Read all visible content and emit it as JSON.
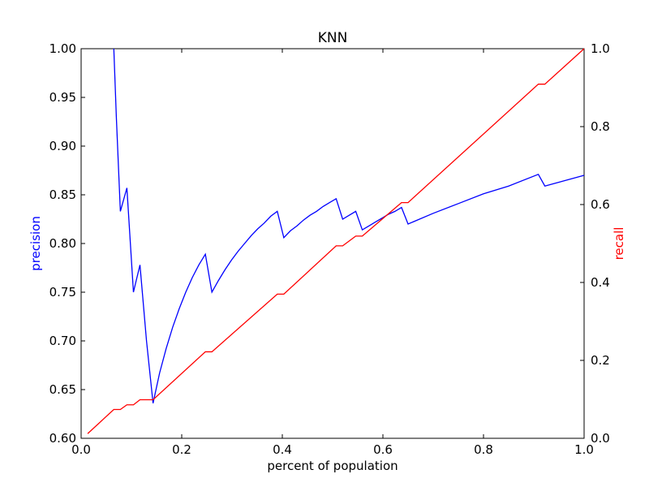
{
  "chart_data": {
    "type": "line",
    "title": "KNN",
    "xlabel": "percent of population",
    "ylabel_left": "precision",
    "ylabel_right": "recall",
    "xlim": [
      0.0,
      1.0
    ],
    "ylim_left": [
      0.6,
      1.0
    ],
    "ylim_right": [
      0.0,
      1.0
    ],
    "x_ticks": [
      "0.0",
      "0.2",
      "0.4",
      "0.6",
      "0.8",
      "1.0"
    ],
    "y_left_ticks": [
      "0.60",
      "0.65",
      "0.70",
      "0.75",
      "0.80",
      "0.85",
      "0.90",
      "0.95",
      "1.00"
    ],
    "y_right_ticks": [
      "0.0",
      "0.2",
      "0.4",
      "0.6",
      "0.8",
      "1.0"
    ],
    "grid": false,
    "colors": {
      "precision": "#0000ff",
      "recall": "#ff0000",
      "axes": "#000000"
    },
    "series": [
      {
        "axis": "left",
        "color": "#0000ff",
        "points": [
          [
            0.065,
            1.0
          ],
          [
            0.07,
            0.93
          ],
          [
            0.078,
            0.833
          ],
          [
            0.091,
            0.857
          ],
          [
            0.104,
            0.75
          ],
          [
            0.117,
            0.778
          ],
          [
            0.13,
            0.7
          ],
          [
            0.143,
            0.636
          ],
          [
            0.156,
            0.667
          ],
          [
            0.169,
            0.692
          ],
          [
            0.182,
            0.714
          ],
          [
            0.195,
            0.733
          ],
          [
            0.208,
            0.75
          ],
          [
            0.221,
            0.765
          ],
          [
            0.234,
            0.778
          ],
          [
            0.247,
            0.789
          ],
          [
            0.26,
            0.75
          ],
          [
            0.273,
            0.762
          ],
          [
            0.286,
            0.773
          ],
          [
            0.299,
            0.783
          ],
          [
            0.312,
            0.792
          ],
          [
            0.325,
            0.8
          ],
          [
            0.338,
            0.808
          ],
          [
            0.351,
            0.815
          ],
          [
            0.364,
            0.821
          ],
          [
            0.377,
            0.828
          ],
          [
            0.39,
            0.833
          ],
          [
            0.403,
            0.806
          ],
          [
            0.416,
            0.813
          ],
          [
            0.429,
            0.818
          ],
          [
            0.442,
            0.824
          ],
          [
            0.455,
            0.829
          ],
          [
            0.468,
            0.833
          ],
          [
            0.481,
            0.838
          ],
          [
            0.494,
            0.842
          ],
          [
            0.507,
            0.846
          ],
          [
            0.52,
            0.825
          ],
          [
            0.533,
            0.829
          ],
          [
            0.546,
            0.833
          ],
          [
            0.559,
            0.814
          ],
          [
            0.572,
            0.818
          ],
          [
            0.585,
            0.822
          ],
          [
            0.598,
            0.826
          ],
          [
            0.611,
            0.83
          ],
          [
            0.624,
            0.833
          ],
          [
            0.637,
            0.837
          ],
          [
            0.65,
            0.82
          ],
          [
            0.7,
            0.831
          ],
          [
            0.75,
            0.841
          ],
          [
            0.8,
            0.851
          ],
          [
            0.85,
            0.859
          ],
          [
            0.909,
            0.871
          ],
          [
            0.922,
            0.859
          ],
          [
            1.0,
            0.87
          ]
        ]
      },
      {
        "axis": "right",
        "color": "#ff0000",
        "points": [
          [
            0.013,
            0.012
          ],
          [
            0.065,
            0.074
          ],
          [
            0.078,
            0.074
          ],
          [
            0.091,
            0.086
          ],
          [
            0.104,
            0.086
          ],
          [
            0.117,
            0.099
          ],
          [
            0.143,
            0.099
          ],
          [
            0.247,
            0.222
          ],
          [
            0.26,
            0.222
          ],
          [
            0.39,
            0.37
          ],
          [
            0.403,
            0.37
          ],
          [
            0.507,
            0.494
          ],
          [
            0.52,
            0.494
          ],
          [
            0.546,
            0.519
          ],
          [
            0.559,
            0.519
          ],
          [
            0.637,
            0.605
          ],
          [
            0.65,
            0.605
          ],
          [
            0.909,
            0.909
          ],
          [
            0.922,
            0.909
          ],
          [
            1.0,
            1.0
          ]
        ]
      }
    ]
  }
}
